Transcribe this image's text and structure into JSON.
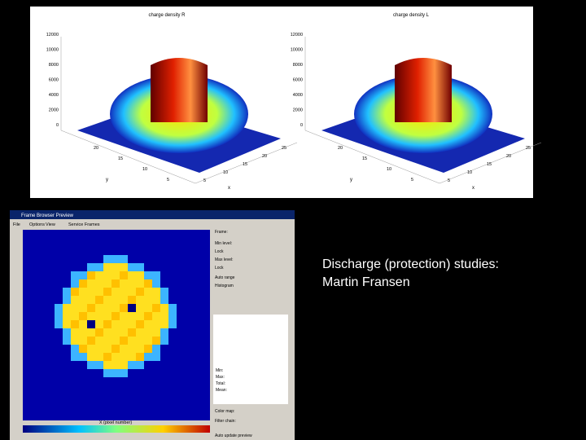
{
  "plots": [
    {
      "title": "charge density R",
      "z_ticks": [
        0,
        2000,
        4000,
        6000,
        8000,
        10000,
        12000
      ],
      "x_ticks": [
        5,
        10,
        15,
        20,
        25
      ],
      "y_ticks": [
        5,
        10,
        15,
        20
      ],
      "x_label": "x",
      "y_label": "y"
    },
    {
      "title": "charge density L",
      "z_ticks": [
        0,
        2000,
        4000,
        6000,
        8000,
        10000,
        12000
      ],
      "x_ticks": [
        5,
        10,
        15,
        20,
        25
      ],
      "y_ticks": [
        5,
        10,
        15,
        20
      ],
      "x_label": "x",
      "y_label": "y"
    }
  ],
  "window": {
    "title": "Frame Browser Preview",
    "menu": [
      "File",
      "Options",
      "View",
      "Service Frames"
    ],
    "x_label": "X (pixel number)",
    "controls": [
      "Frame:",
      "Min level:",
      "Lock",
      "Max level:",
      "Lock",
      "Auto range",
      "Histogram",
      "Color map:",
      "Filter chain:",
      "Auto update preview"
    ],
    "stats": [
      "Min:",
      "Max:",
      "Total:",
      "Mean:"
    ]
  },
  "slide": {
    "lines": [
      "Discharge (protection) studies:",
      "Martin Fransen"
    ]
  }
}
